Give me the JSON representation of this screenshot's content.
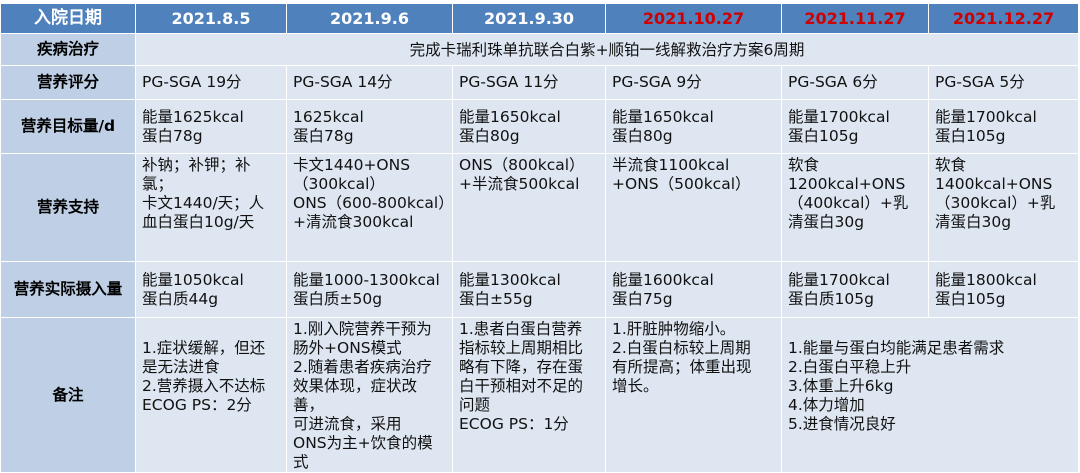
{
  "header": {
    "corner": "入院日期",
    "dates": [
      "2021.8.5",
      "2021.9.6",
      "2021.9.30",
      "2021.10.27",
      "2021.11.27",
      "2021.12.27"
    ],
    "date_colors": [
      "#ffffff",
      "#ffffff",
      "#ffffff",
      "#d10000",
      "#d10000",
      "#d10000"
    ]
  },
  "rows": {
    "treatment": {
      "label": "疾病治疗",
      "value": "完成卡瑞利珠单抗联合白紫+顺铂一线解救治疗方案6周期"
    },
    "score": {
      "label": "营养评分",
      "cells": [
        "PG-SGA 19分",
        "PG-SGA 14分",
        "PG-SGA 11分",
        "PG-SGA 9分",
        "PG-SGA 6分",
        "PG-SGA 5分"
      ]
    },
    "target": {
      "label": "营养目标量/d",
      "cells": [
        [
          "能量1625kcal",
          "蛋白78g"
        ],
        [
          "1625kcal",
          "蛋白78g"
        ],
        [
          "能量1650kcal",
          "蛋白80g"
        ],
        [
          "能量1650kcal",
          "蛋白80g"
        ],
        [
          "能量1700kcal",
          "蛋白105g"
        ],
        [
          "能量1700kcal",
          "蛋白105g"
        ]
      ]
    },
    "support": {
      "label": "营养支持",
      "cells": [
        [
          "补钠；补钾；补氯；",
          "卡文1440/天；人",
          "血白蛋白10g/天"
        ],
        [
          "卡文1440+ONS",
          "（300kcal）",
          "ONS（600-800kcal）",
          "+清流食300kcal"
        ],
        [
          "ONS（800kcal）",
          "+半流食500kcal"
        ],
        [
          "半流食1100kcal",
          "+ONS（500kcal）"
        ],
        [
          "软食",
          "1200kcal+ONS",
          "（400kcal）+乳",
          "清蛋白30g"
        ],
        [
          "软食",
          "1400kcal+ONS",
          "（300kcal）+乳",
          "清蛋白30g"
        ]
      ]
    },
    "intake": {
      "label": "营养实际摄入量",
      "cells": [
        [
          "能量1050kcal",
          "蛋白质44g"
        ],
        [
          "能量1000-1300kcal",
          "蛋白质±50g"
        ],
        [
          "能量1300kcal",
          "蛋白±55g"
        ],
        [
          "能量1600kcal",
          "蛋白75g"
        ],
        [
          "能量1700kcal",
          "蛋白质105g"
        ],
        [
          "能量1800kcal",
          "蛋白105g"
        ]
      ]
    },
    "notes": {
      "label": "备注",
      "cells": [
        [
          "",
          "1.症状缓解，但还",
          "是无法进食",
          "2.营养摄入不达标",
          "ECOG PS：2分"
        ],
        [
          "1.刚入院营养干预为",
          "肠外+ONS模式",
          "2.随着患者疾病治疗",
          "效果体现，症状改善，",
          "可进流食，采用",
          "ONS为主+饮食的模",
          "式"
        ],
        [
          "1.患者白蛋白营养",
          "指标较上周期相比",
          "略有下降，存在蛋",
          "白干预相对不足的",
          "问题",
          "ECOG PS：1分"
        ],
        [
          "1.肝脏肿物缩小。",
          "2.白蛋白标较上周期",
          "有所提高；体重出现",
          "增长。"
        ],
        [
          "",
          "1.能量与蛋白均能满足患者需求",
          "2.白蛋白平稳上升",
          "3.体重上升6kg",
          "4.体力增加",
          "5.进食情况良好"
        ]
      ]
    }
  }
}
